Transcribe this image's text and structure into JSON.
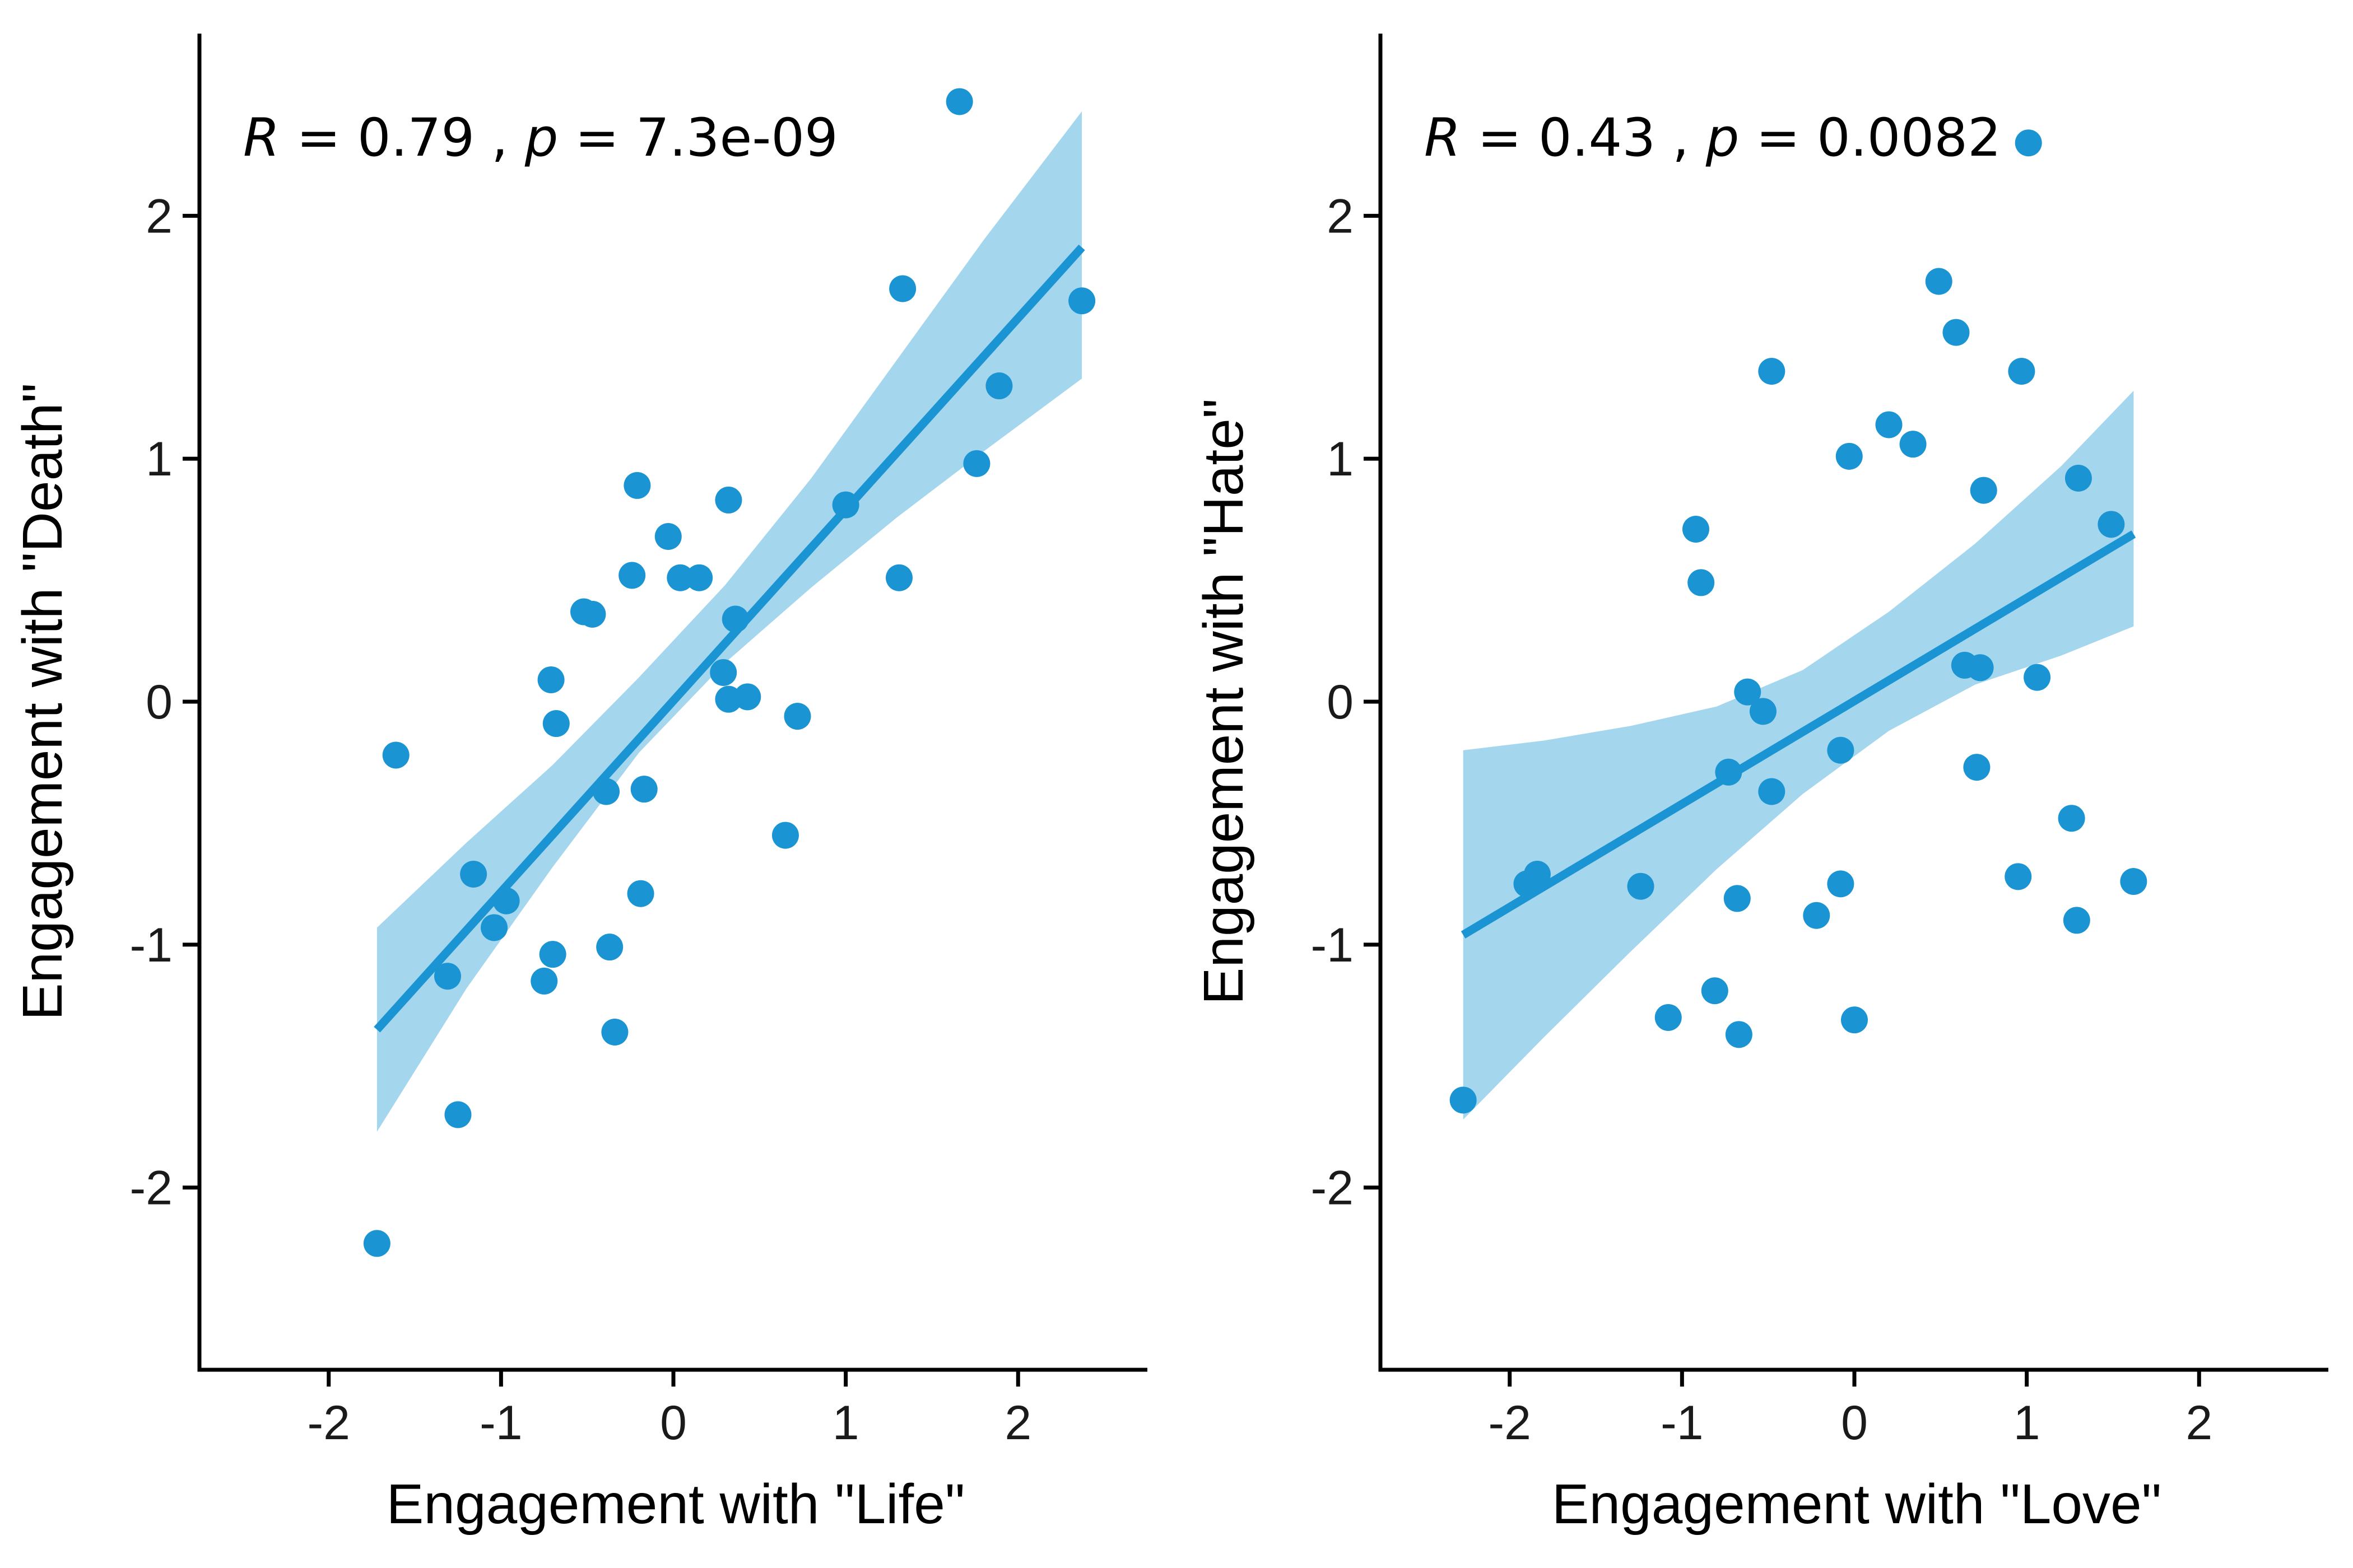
{
  "chart_data": [
    {
      "type": "scatter",
      "xlabel": "Engagement with \"Life\"",
      "ylabel": "Engagement with \"Death\"",
      "xlim": [
        -2.75,
        2.75
      ],
      "ylim": [
        -2.75,
        2.75
      ],
      "xticks": [
        -2,
        -1,
        0,
        1,
        2
      ],
      "yticks": [
        -2,
        -1,
        0,
        1,
        2
      ],
      "xtick_labels": [
        "-2",
        "-1",
        "0",
        "1",
        "2"
      ],
      "ytick_labels": [
        "-2",
        "-1",
        "0",
        "1",
        "2"
      ],
      "annotation": {
        "r_label": "R",
        "r_value": "0.79",
        "sep": ",",
        "p_label": "p",
        "p_value": "7.3e-09"
      },
      "point_color": "#1a94d2",
      "band_color": "#a4d6ee",
      "fit": {
        "x": [
          -1.72,
          2.37
        ],
        "y": [
          -1.35,
          1.87
        ]
      },
      "band": {
        "x": [
          -1.72,
          -1.2,
          -0.7,
          -0.2,
          0.3,
          0.8,
          1.3,
          1.8,
          2.37
        ],
        "lower": [
          -1.77,
          -1.18,
          -0.68,
          -0.21,
          0.16,
          0.47,
          0.76,
          1.03,
          1.33
        ],
        "upper": [
          -0.93,
          -0.58,
          -0.26,
          0.1,
          0.48,
          0.92,
          1.41,
          1.9,
          2.43
        ]
      },
      "points": [
        {
          "x": -1.72,
          "y": -2.23
        },
        {
          "x": -1.61,
          "y": -0.22
        },
        {
          "x": -1.25,
          "y": -1.7
        },
        {
          "x": -1.31,
          "y": -1.13
        },
        {
          "x": -1.16,
          "y": -0.71
        },
        {
          "x": -1.04,
          "y": -0.93
        },
        {
          "x": -0.97,
          "y": -0.82
        },
        {
          "x": -0.75,
          "y": -1.15
        },
        {
          "x": -0.7,
          "y": -1.04
        },
        {
          "x": -0.71,
          "y": 0.09
        },
        {
          "x": -0.68,
          "y": -0.09
        },
        {
          "x": -0.52,
          "y": 0.37
        },
        {
          "x": -0.47,
          "y": 0.36
        },
        {
          "x": -0.39,
          "y": -0.37
        },
        {
          "x": -0.37,
          "y": -1.01
        },
        {
          "x": -0.34,
          "y": -1.36
        },
        {
          "x": -0.24,
          "y": 0.52
        },
        {
          "x": -0.21,
          "y": 0.89
        },
        {
          "x": -0.19,
          "y": -0.79
        },
        {
          "x": -0.17,
          "y": -0.36
        },
        {
          "x": -0.03,
          "y": 0.68
        },
        {
          "x": 0.04,
          "y": 0.51
        },
        {
          "x": 0.15,
          "y": 0.51
        },
        {
          "x": 0.29,
          "y": 0.12
        },
        {
          "x": 0.32,
          "y": 0.83
        },
        {
          "x": 0.32,
          "y": 0.01
        },
        {
          "x": 0.36,
          "y": 0.34
        },
        {
          "x": 0.43,
          "y": 0.02
        },
        {
          "x": 0.65,
          "y": -0.55
        },
        {
          "x": 0.72,
          "y": -0.06
        },
        {
          "x": 1.0,
          "y": 0.81
        },
        {
          "x": 1.31,
          "y": 0.51
        },
        {
          "x": 1.33,
          "y": 1.7
        },
        {
          "x": 1.66,
          "y": 2.47
        },
        {
          "x": 1.76,
          "y": 0.98
        },
        {
          "x": 1.89,
          "y": 1.3
        },
        {
          "x": 2.37,
          "y": 1.65
        }
      ]
    },
    {
      "type": "scatter",
      "xlabel": "Engagement with \"Love\"",
      "ylabel": "Engagement with \"Hate\"",
      "xlim": [
        -2.75,
        2.75
      ],
      "ylim": [
        -2.75,
        2.75
      ],
      "xticks": [
        -2,
        -1,
        0,
        1,
        2
      ],
      "yticks": [
        -2,
        -1,
        0,
        1,
        2
      ],
      "xtick_labels": [
        "-2",
        "-1",
        "0",
        "1",
        "2"
      ],
      "ytick_labels": [
        "-2",
        "-1",
        "0",
        "1",
        "2"
      ],
      "annotation": {
        "r_label": "R",
        "r_value": "0.43",
        "sep": ",",
        "p_label": "p",
        "p_value": "0.0082"
      },
      "point_color": "#1a94d2",
      "band_color": "#a4d6ee",
      "fit": {
        "x": [
          -2.27,
          1.62
        ],
        "y": [
          -0.96,
          0.69
        ]
      },
      "band": {
        "x": [
          -2.27,
          -1.8,
          -1.3,
          -0.8,
          -0.3,
          0.2,
          0.7,
          1.2,
          1.62
        ],
        "lower": [
          -1.72,
          -1.38,
          -1.03,
          -0.69,
          -0.38,
          -0.12,
          0.07,
          0.19,
          0.31
        ],
        "upper": [
          -0.2,
          -0.16,
          -0.1,
          -0.02,
          0.13,
          0.37,
          0.65,
          0.97,
          1.28
        ]
      },
      "points": [
        {
          "x": -2.27,
          "y": -1.64
        },
        {
          "x": -1.9,
          "y": -0.75
        },
        {
          "x": -1.84,
          "y": -0.71
        },
        {
          "x": -1.24,
          "y": -0.76
        },
        {
          "x": -1.08,
          "y": -1.3
        },
        {
          "x": -0.92,
          "y": 0.71
        },
        {
          "x": -0.89,
          "y": 0.49
        },
        {
          "x": -0.81,
          "y": -1.19
        },
        {
          "x": -0.73,
          "y": -0.29
        },
        {
          "x": -0.68,
          "y": -0.81
        },
        {
          "x": -0.67,
          "y": -1.37
        },
        {
          "x": -0.62,
          "y": 0.04
        },
        {
          "x": -0.53,
          "y": -0.04
        },
        {
          "x": -0.48,
          "y": -0.37
        },
        {
          "x": -0.48,
          "y": 1.36
        },
        {
          "x": -0.22,
          "y": -0.88
        },
        {
          "x": -0.08,
          "y": -0.75
        },
        {
          "x": -0.08,
          "y": -0.2
        },
        {
          "x": -0.03,
          "y": 1.01
        },
        {
          "x": 0.0,
          "y": -1.31
        },
        {
          "x": 0.2,
          "y": 1.14
        },
        {
          "x": 0.34,
          "y": 1.06
        },
        {
          "x": 0.49,
          "y": 1.73
        },
        {
          "x": 0.59,
          "y": 1.52
        },
        {
          "x": 0.64,
          "y": 0.15
        },
        {
          "x": 0.71,
          "y": -0.27
        },
        {
          "x": 0.73,
          "y": 0.14
        },
        {
          "x": 0.75,
          "y": 0.87
        },
        {
          "x": 0.95,
          "y": -0.72
        },
        {
          "x": 0.97,
          "y": 1.36
        },
        {
          "x": 1.01,
          "y": 2.3
        },
        {
          "x": 1.06,
          "y": 0.1
        },
        {
          "x": 1.26,
          "y": -0.48
        },
        {
          "x": 1.29,
          "y": -0.9
        },
        {
          "x": 1.3,
          "y": 0.92
        },
        {
          "x": 1.49,
          "y": 0.73
        },
        {
          "x": 1.62,
          "y": -0.74
        }
      ]
    }
  ]
}
